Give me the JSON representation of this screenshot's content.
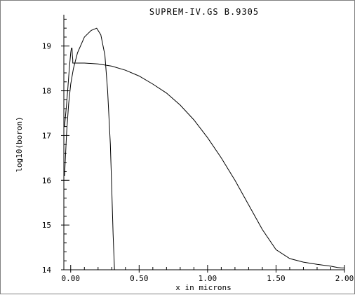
{
  "chart_data": {
    "type": "line",
    "title": "SUPREM-IV.GS B.9305",
    "xlabel": "x in microns",
    "ylabel": "log10(boron)",
    "xlim": [
      -0.05,
      2.0
    ],
    "ylim": [
      14,
      19.7
    ],
    "x_ticks": [
      {
        "value": 0.0,
        "label": "0.00"
      },
      {
        "value": 0.5,
        "label": "0.50"
      },
      {
        "value": 1.0,
        "label": "1.00"
      },
      {
        "value": 1.5,
        "label": "1.50"
      },
      {
        "value": 2.0,
        "label": "2.00"
      }
    ],
    "y_ticks": [
      {
        "value": 14,
        "label": "14"
      },
      {
        "value": 15,
        "label": "15"
      },
      {
        "value": 16,
        "label": "16"
      },
      {
        "value": 17,
        "label": "17"
      },
      {
        "value": 18,
        "label": "18"
      },
      {
        "value": 19,
        "label": "19"
      }
    ],
    "grid": false,
    "series": [
      {
        "x": [
          -0.045,
          -0.03,
          -0.015,
          0.0,
          0.02,
          0.05,
          0.1,
          0.15,
          0.19,
          0.22,
          0.25,
          0.27,
          0.29,
          0.3,
          0.31,
          0.32
        ],
        "y": [
          16.1,
          17.05,
          17.7,
          18.15,
          18.5,
          18.85,
          19.2,
          19.35,
          19.4,
          19.25,
          18.8,
          18.0,
          16.8,
          15.8,
          14.8,
          14.0
        ]
      },
      {
        "x": [
          -0.045,
          -0.03,
          -0.02,
          -0.01,
          0.0,
          0.005,
          0.01,
          0.012,
          0.015,
          0.015,
          0.1,
          0.2,
          0.3,
          0.4,
          0.5,
          0.6,
          0.7,
          0.8,
          0.9,
          1.0,
          1.1,
          1.2,
          1.3,
          1.4,
          1.5,
          1.6,
          1.7,
          1.8,
          1.9,
          1.95,
          1.98,
          2.0
        ],
        "y": [
          17.2,
          17.7,
          18.1,
          18.5,
          18.85,
          18.95,
          18.95,
          18.8,
          18.7,
          18.62,
          18.62,
          18.6,
          18.55,
          18.46,
          18.33,
          18.15,
          17.95,
          17.68,
          17.35,
          16.95,
          16.5,
          16.0,
          15.45,
          14.9,
          14.45,
          14.25,
          14.17,
          14.12,
          14.08,
          14.05,
          14.04,
          14.04
        ]
      }
    ]
  }
}
